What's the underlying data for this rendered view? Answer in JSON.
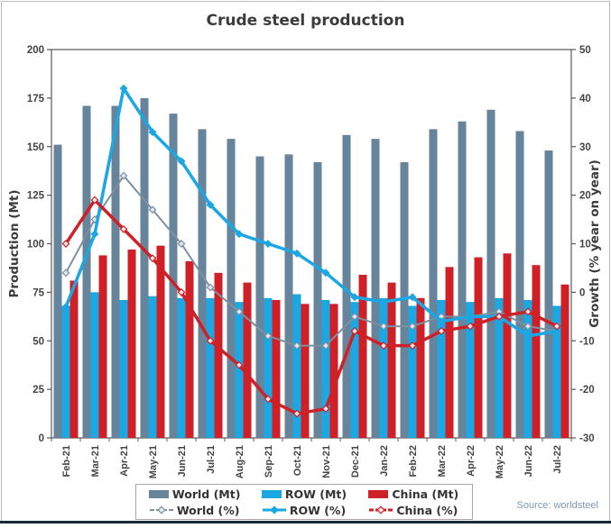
{
  "figure": {
    "source_note": "Source: worldsteel"
  },
  "chart_data": {
    "type": "combo-bar-line",
    "title": "Crude steel production",
    "grid": false,
    "legend_position": "bottom",
    "categories": [
      "Feb-21",
      "Mar-21",
      "Apr-21",
      "May-21",
      "Jun-21",
      "Jul-21",
      "Aug-21",
      "Sep-21",
      "Oct-21",
      "Nov-21",
      "Dec-21",
      "Jan-22",
      "Feb-22",
      "Mar-22",
      "Apr-22",
      "May-22",
      "Jun-22",
      "Jul-22"
    ],
    "left_axis": {
      "label": "Production (Mt)",
      "min": 0,
      "max": 200,
      "ticks": [
        0,
        25,
        50,
        75,
        100,
        125,
        150,
        175,
        200
      ]
    },
    "right_axis": {
      "label": "Growth (% year on year)",
      "min": -30,
      "max": 50,
      "ticks": [
        -30,
        -20,
        -10,
        0,
        10,
        20,
        30,
        40,
        50
      ]
    },
    "series": [
      {
        "name": "World (Mt)",
        "type": "bar",
        "axis": "left",
        "color": "#68849b",
        "values": [
          151,
          171,
          171,
          175,
          167,
          159,
          154,
          145,
          146,
          142,
          156,
          154,
          142,
          159,
          163,
          169,
          158,
          148
        ]
      },
      {
        "name": "ROW (Mt)",
        "type": "bar",
        "axis": "left",
        "color": "#1aa7e3",
        "values": [
          68,
          75,
          71,
          73,
          72,
          72,
          70,
          72,
          74,
          71,
          70,
          72,
          68,
          71,
          70,
          72,
          71,
          68
        ]
      },
      {
        "name": "China (Mt)",
        "type": "bar",
        "axis": "left",
        "color": "#d02027",
        "values": [
          81,
          94,
          97,
          99,
          91,
          85,
          80,
          71,
          69,
          69,
          84,
          80,
          72,
          88,
          93,
          95,
          89,
          79
        ]
      },
      {
        "name": "World (%)",
        "type": "line",
        "axis": "right",
        "color": "#7d90a0",
        "line_width": 2,
        "marker": "diamond",
        "marker_fill": "#dfe8ee",
        "values": [
          4,
          15,
          24,
          17,
          10,
          1,
          -4,
          -9,
          -11,
          -11,
          -5,
          -7,
          -7,
          -5,
          -5,
          -4,
          -7,
          -8
        ]
      },
      {
        "name": "ROW (%)",
        "type": "line",
        "axis": "right",
        "color": "#1aa7e3",
        "line_width": 3.5,
        "marker": "diamond",
        "marker_fill": "#1aa7e3",
        "values": [
          -3,
          12,
          42,
          33,
          27,
          18,
          12,
          10,
          8,
          4,
          -1,
          -2,
          -1,
          -6,
          -5,
          -5,
          -9,
          -8
        ]
      },
      {
        "name": "China (%)",
        "type": "line",
        "axis": "right",
        "color": "#d02027",
        "line_width": 3.5,
        "marker": "diamond",
        "marker_fill": "#fbe9e9",
        "values": [
          10,
          19,
          13,
          7,
          0,
          -10,
          -15,
          -22,
          -25,
          -24,
          -8,
          -11,
          -11,
          -8,
          -7,
          -5,
          -4,
          -7
        ]
      }
    ]
  }
}
